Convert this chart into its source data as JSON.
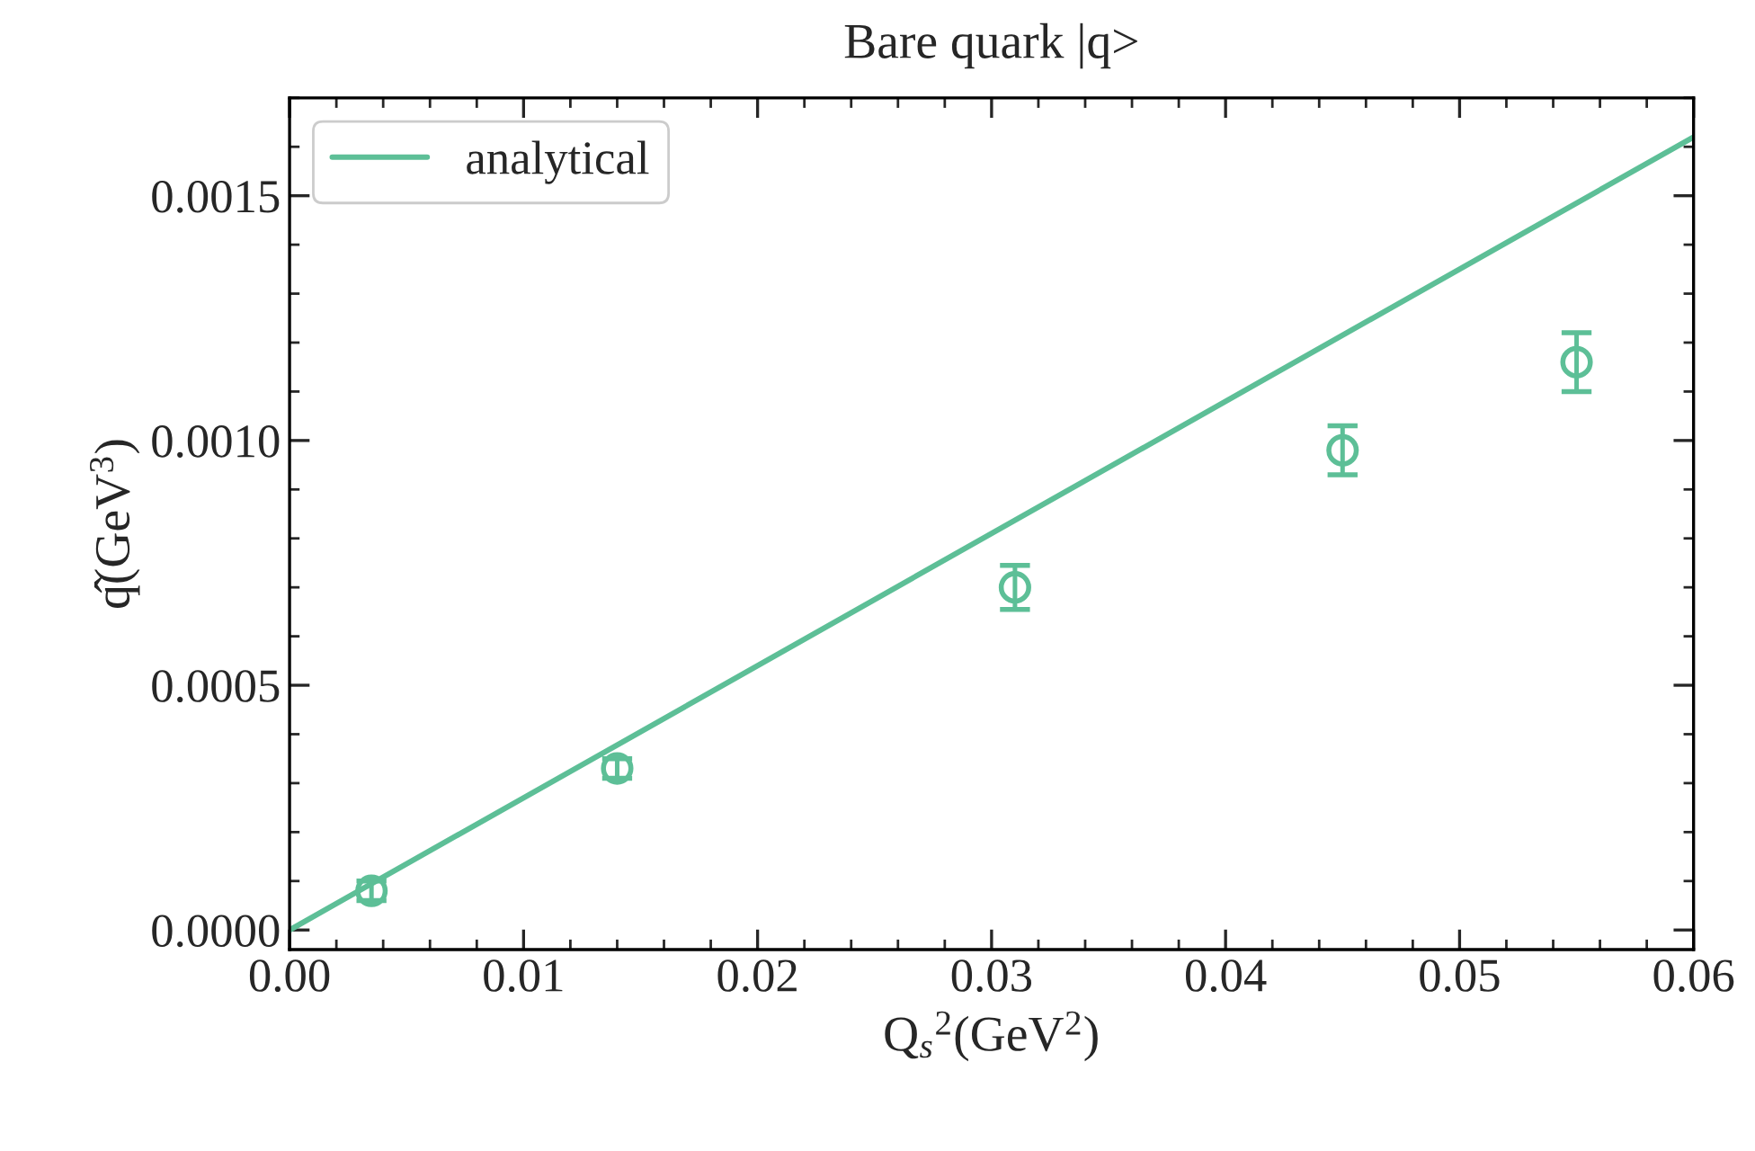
{
  "chart_data": {
    "type": "scatter",
    "title": "Bare quark |q>",
    "xlabel": "Q$_{s}$$^{2}$(GeV$^{2}$)",
    "ylabel": "q̂(GeV$^{3}$)",
    "series": [
      {
        "name": "analytical",
        "type": "line",
        "color": "#5dbf97",
        "x": [
          0,
          0.06
        ],
        "values": [
          0,
          0.00162
        ],
        "marker": "none",
        "line_style": "solid"
      },
      {
        "color": "#5dbf97",
        "x": [
          0.0035,
          0.014,
          0.031,
          0.045,
          0.055
        ],
        "values": [
          8e-05,
          0.00033,
          0.0007,
          0.00098,
          0.00116
        ],
        "errors": [
          2e-05,
          2e-05,
          4.5e-05,
          5e-05,
          6e-05
        ],
        "marker": "circle"
      }
    ],
    "xlim": [
      0,
      0.06
    ],
    "xticks": [
      {
        "value": 0,
        "label": "0.00"
      },
      0.01,
      0.02,
      0.03,
      0.04,
      0.05,
      0.06
    ],
    "ylim": [
      -4e-05,
      0.0017
    ],
    "yticks": [
      {
        "value": 0,
        "label": "0.0000"
      },
      {
        "value": 0.0005,
        "label": "0.0005"
      },
      {
        "value": 0.001,
        "label": "0.0010"
      },
      {
        "value": 0.0015,
        "label": "0.0015"
      }
    ],
    "legend": "top left",
    "grid": false
  }
}
